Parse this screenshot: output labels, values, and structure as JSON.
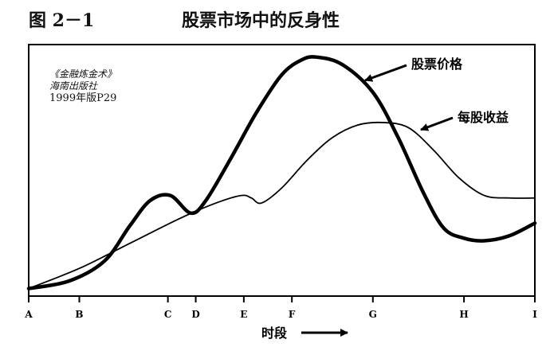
{
  "figure": {
    "label": "图 2－1",
    "title": "股票市场中的反身性"
  },
  "note": {
    "line1": "《金融炼金术》",
    "line2": "海南出版社",
    "line3": "1999年版P29"
  },
  "chart_data": {
    "type": "line",
    "xlabel": "时段",
    "x_ticks": [
      "A",
      "B",
      "C",
      "D",
      "E",
      "F",
      "G",
      "H",
      "I"
    ],
    "x_tick_positions": [
      0,
      1,
      2.75,
      3.3,
      4.25,
      5.2,
      6.8,
      8.6,
      10
    ],
    "xlim": [
      0,
      10
    ],
    "ylim": [
      0,
      100
    ],
    "grid": false,
    "series": [
      {
        "name": "股票价格",
        "color": "#000000",
        "points": [
          [
            0,
            3
          ],
          [
            0.8,
            6
          ],
          [
            1.5,
            14
          ],
          [
            2,
            28
          ],
          [
            2.4,
            38
          ],
          [
            2.8,
            40
          ],
          [
            3.2,
            33
          ],
          [
            3.5,
            38
          ],
          [
            4,
            55
          ],
          [
            4.5,
            73
          ],
          [
            5,
            88
          ],
          [
            5.4,
            94
          ],
          [
            5.7,
            95
          ],
          [
            6.2,
            92
          ],
          [
            6.8,
            81
          ],
          [
            7.3,
            63
          ],
          [
            7.8,
            41
          ],
          [
            8.2,
            27
          ],
          [
            8.6,
            23
          ],
          [
            9,
            22
          ],
          [
            9.5,
            24
          ],
          [
            10,
            29
          ]
        ]
      },
      {
        "name": "每股收益",
        "color": "#000000",
        "points": [
          [
            0,
            3
          ],
          [
            1,
            11
          ],
          [
            2,
            21
          ],
          [
            3,
            31
          ],
          [
            3.7,
            37
          ],
          [
            4.2,
            40
          ],
          [
            4.4,
            39
          ],
          [
            4.6,
            37
          ],
          [
            5,
            43
          ],
          [
            5.5,
            54
          ],
          [
            6,
            63
          ],
          [
            6.5,
            68
          ],
          [
            7,
            69
          ],
          [
            7.5,
            67
          ],
          [
            8,
            58
          ],
          [
            8.5,
            47
          ],
          [
            9,
            40
          ],
          [
            9.5,
            39
          ],
          [
            10,
            39
          ]
        ]
      }
    ]
  }
}
